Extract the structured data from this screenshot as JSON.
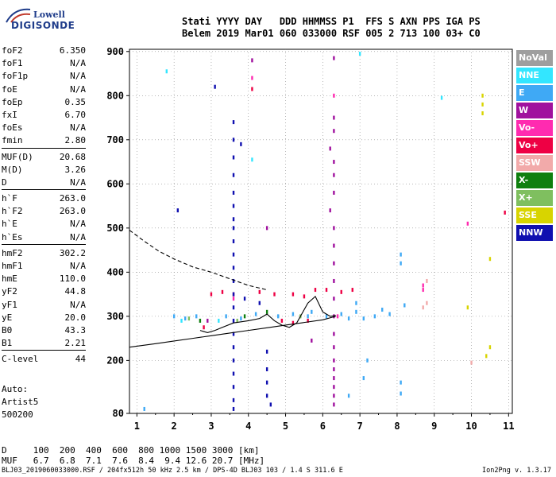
{
  "logo": {
    "line1": "Lowell",
    "line2": "DIGISONDE"
  },
  "header": {
    "line1": "Stati YYYY DAY   DDD HHMMSS P1  FFS S AXN PPS IGA PS",
    "line2": "Belem 2019 Mar01 060 033000 RSF 005 2 713 100 03+ C0"
  },
  "params": {
    "group1": [
      {
        "k": "foF2",
        "v": "6.350"
      },
      {
        "k": "foF1",
        "v": "N/A"
      },
      {
        "k": "foF1p",
        "v": "N/A"
      },
      {
        "k": "foE",
        "v": "N/A"
      },
      {
        "k": "foEp",
        "v": "0.35"
      },
      {
        "k": "fxI",
        "v": "6.70"
      },
      {
        "k": "foEs",
        "v": "N/A"
      },
      {
        "k": "fmin",
        "v": "2.80"
      }
    ],
    "group2": [
      {
        "k": "MUF(D)",
        "v": "20.68"
      },
      {
        "k": "M(D)",
        "v": "3.26"
      },
      {
        "k": "D",
        "v": "N/A"
      }
    ],
    "group3": [
      {
        "k": "h`F",
        "v": "263.0"
      },
      {
        "k": "h`F2",
        "v": "263.0"
      },
      {
        "k": "h`E",
        "v": "N/A"
      },
      {
        "k": "h`Es",
        "v": "N/A"
      }
    ],
    "group4": [
      {
        "k": "hmF2",
        "v": "302.2"
      },
      {
        "k": "hmF1",
        "v": "N/A"
      },
      {
        "k": "hmE",
        "v": "110.0"
      },
      {
        "k": "yF2",
        "v": "44.8"
      },
      {
        "k": "yF1",
        "v": "N/A"
      },
      {
        "k": "yE",
        "v": "20.0"
      },
      {
        "k": "B0",
        "v": "43.3"
      },
      {
        "k": "B1",
        "v": "2.21"
      }
    ],
    "group5": [
      {
        "k": "C-level",
        "v": "44"
      }
    ]
  },
  "auto": {
    "line1": "Auto:",
    "line2": "Artist5",
    "line3": "500200"
  },
  "legend": [
    {
      "label": "NoVal",
      "color": "#9e9e9e"
    },
    {
      "label": "NNE",
      "color": "#33e6ff"
    },
    {
      "label": "E",
      "color": "#3fa9f5"
    },
    {
      "label": "W",
      "color": "#a0119e"
    },
    {
      "label": "Vo-",
      "color": "#ff2bb0"
    },
    {
      "label": "Vo+",
      "color": "#ee0044"
    },
    {
      "label": "SSW",
      "color": "#f2aaaa"
    },
    {
      "label": "X-",
      "color": "#0f7f0f"
    },
    {
      "label": "X+",
      "color": "#7fbf5f"
    },
    {
      "label": "SSE",
      "color": "#d8d400"
    },
    {
      "label": "NNW",
      "color": "#1010b0"
    }
  ],
  "dtable": {
    "line1": "D     100  200  400  600  800 1000 1500 3000 [km]",
    "line2": "MUF   6.7  6.8  7.1  7.6  8.4  9.4 12.6 20.7 [MHz]"
  },
  "footer": {
    "file": "BLJ03_2019060033000.RSF / 204fx512h 50 kHz 2.5 km / DPS-4D BLJ03 103 / 1.4 S 311.6 E",
    "version": "Ion2Png v. 1.3.17"
  },
  "chart_data": {
    "type": "scatter",
    "title": "",
    "xlabel": "",
    "ylabel": "",
    "xlim": [
      0.8,
      11.1
    ],
    "ylim": [
      80,
      905
    ],
    "xticks": [
      1,
      2,
      3,
      4,
      5,
      6,
      7,
      8,
      9,
      10,
      11
    ],
    "yticks": [
      80,
      200,
      300,
      400,
      500,
      600,
      700,
      800,
      900
    ],
    "grid": true,
    "trace_profile": {
      "name": "",
      "x": [
        0.8,
        1.5,
        2.0,
        2.5,
        3.0,
        3.5,
        4.0,
        4.5,
        5.0,
        5.5,
        6.0,
        6.35
      ],
      "y": [
        230,
        238,
        244,
        250,
        256,
        262,
        268,
        274,
        280,
        286,
        292,
        300
      ]
    },
    "trace_extrapolation": {
      "name": "",
      "x": [
        0.8,
        1.2,
        1.6,
        2.0,
        2.5,
        3.0,
        3.5,
        4.0,
        4.5
      ],
      "y": [
        495,
        470,
        447,
        430,
        412,
        400,
        385,
        370,
        360
      ]
    },
    "trace_virtual_height": {
      "name": "",
      "x": [
        2.7,
        2.9,
        3.1,
        3.3,
        3.6,
        4.0,
        4.3,
        4.5,
        4.7,
        4.9,
        5.1,
        5.3,
        5.6,
        5.8,
        6.0,
        6.2,
        6.35
      ],
      "y": [
        268,
        263,
        268,
        275,
        285,
        290,
        295,
        305,
        290,
        280,
        275,
        285,
        330,
        345,
        310,
        300,
        302
      ]
    },
    "series": [
      {
        "name": "NNE",
        "color": "#33e6ff",
        "points": [
          [
            1.8,
            855
          ],
          [
            9.2,
            795
          ],
          [
            7.0,
            895
          ],
          [
            4.1,
            655
          ],
          [
            2.2,
            290
          ],
          [
            3.2,
            290
          ]
        ]
      },
      {
        "name": "E",
        "color": "#3fa9f5",
        "points": [
          [
            2.0,
            300
          ],
          [
            2.3,
            295
          ],
          [
            2.6,
            300
          ],
          [
            3.4,
            300
          ],
          [
            3.8,
            295
          ],
          [
            4.2,
            305
          ],
          [
            4.8,
            300
          ],
          [
            5.2,
            305
          ],
          [
            5.6,
            300
          ],
          [
            6.1,
            300
          ],
          [
            6.5,
            305
          ],
          [
            6.7,
            295
          ],
          [
            6.9,
            310
          ],
          [
            7.1,
            295
          ],
          [
            7.4,
            300
          ],
          [
            7.8,
            305
          ],
          [
            8.1,
            420
          ],
          [
            8.1,
            440
          ],
          [
            8.2,
            325
          ],
          [
            8.1,
            150
          ],
          [
            8.1,
            125
          ],
          [
            7.1,
            160
          ],
          [
            7.2,
            200
          ],
          [
            6.7,
            120
          ],
          [
            1.2,
            90
          ],
          [
            5.7,
            310
          ],
          [
            6.9,
            330
          ],
          [
            7.6,
            315
          ]
        ]
      },
      {
        "name": "W",
        "color": "#a0119e",
        "points": [
          [
            4.1,
            880
          ],
          [
            6.3,
            885
          ],
          [
            6.3,
            750
          ],
          [
            6.3,
            720
          ],
          [
            6.2,
            680
          ],
          [
            6.3,
            650
          ],
          [
            6.3,
            620
          ],
          [
            6.3,
            580
          ],
          [
            6.2,
            540
          ],
          [
            6.3,
            500
          ],
          [
            6.3,
            460
          ],
          [
            6.3,
            420
          ],
          [
            6.3,
            380
          ],
          [
            6.3,
            340
          ],
          [
            6.3,
            300
          ],
          [
            6.3,
            260
          ],
          [
            6.3,
            230
          ],
          [
            6.3,
            200
          ],
          [
            6.3,
            180
          ],
          [
            6.3,
            160
          ],
          [
            6.3,
            140
          ],
          [
            6.3,
            120
          ],
          [
            6.3,
            100
          ],
          [
            5.7,
            245
          ],
          [
            4.5,
            500
          ],
          [
            2.9,
            290
          ]
        ]
      },
      {
        "name": "Vo-",
        "color": "#ff2bb0",
        "points": [
          [
            4.1,
            840
          ],
          [
            6.3,
            800
          ],
          [
            9.9,
            510
          ],
          [
            8.7,
            370
          ],
          [
            8.7,
            360
          ],
          [
            3.6,
            340
          ],
          [
            6.4,
            300
          ]
        ]
      },
      {
        "name": "Vo+",
        "color": "#ee0044",
        "points": [
          [
            3.0,
            350
          ],
          [
            3.3,
            355
          ],
          [
            3.6,
            350
          ],
          [
            4.3,
            355
          ],
          [
            4.7,
            350
          ],
          [
            5.2,
            350
          ],
          [
            5.5,
            345
          ],
          [
            5.8,
            360
          ],
          [
            6.1,
            360
          ],
          [
            6.5,
            355
          ],
          [
            6.8,
            360
          ],
          [
            4.9,
            290
          ],
          [
            5.2,
            285
          ],
          [
            5.6,
            290
          ],
          [
            2.8,
            275
          ],
          [
            10.9,
            535
          ],
          [
            4.1,
            815
          ]
        ]
      },
      {
        "name": "SSW",
        "color": "#f2aaaa",
        "points": [
          [
            8.8,
            380
          ],
          [
            8.8,
            330
          ],
          [
            8.7,
            320
          ],
          [
            10.0,
            195
          ]
        ]
      },
      {
        "name": "X-",
        "color": "#0f7f0f",
        "points": [
          [
            2.7,
            290
          ],
          [
            3.9,
            300
          ],
          [
            4.5,
            310
          ]
        ]
      },
      {
        "name": "X+",
        "color": "#7fbf5f",
        "points": [
          [
            2.4,
            295
          ],
          [
            3.7,
            290
          ],
          [
            5.4,
            300
          ]
        ]
      },
      {
        "name": "SSE",
        "color": "#d8d400",
        "points": [
          [
            10.3,
            800
          ],
          [
            10.3,
            780
          ],
          [
            10.3,
            760
          ],
          [
            10.5,
            430
          ],
          [
            10.5,
            230
          ],
          [
            10.4,
            210
          ],
          [
            9.9,
            320
          ]
        ]
      },
      {
        "name": "NNW",
        "color": "#1010b0",
        "points": [
          [
            3.6,
            740
          ],
          [
            3.6,
            700
          ],
          [
            3.6,
            660
          ],
          [
            3.6,
            620
          ],
          [
            3.6,
            580
          ],
          [
            3.6,
            550
          ],
          [
            3.6,
            520
          ],
          [
            3.6,
            500
          ],
          [
            3.6,
            470
          ],
          [
            3.6,
            440
          ],
          [
            3.6,
            410
          ],
          [
            3.6,
            380
          ],
          [
            3.6,
            350
          ],
          [
            3.6,
            320
          ],
          [
            3.6,
            290
          ],
          [
            3.6,
            260
          ],
          [
            3.6,
            230
          ],
          [
            3.6,
            200
          ],
          [
            3.6,
            170
          ],
          [
            3.6,
            140
          ],
          [
            3.6,
            110
          ],
          [
            3.6,
            90
          ],
          [
            4.5,
            220
          ],
          [
            4.5,
            180
          ],
          [
            4.5,
            150
          ],
          [
            4.5,
            120
          ],
          [
            4.6,
            100
          ],
          [
            4.3,
            330
          ],
          [
            3.9,
            340
          ],
          [
            2.1,
            540
          ],
          [
            3.1,
            820
          ],
          [
            3.8,
            690
          ]
        ]
      }
    ]
  }
}
